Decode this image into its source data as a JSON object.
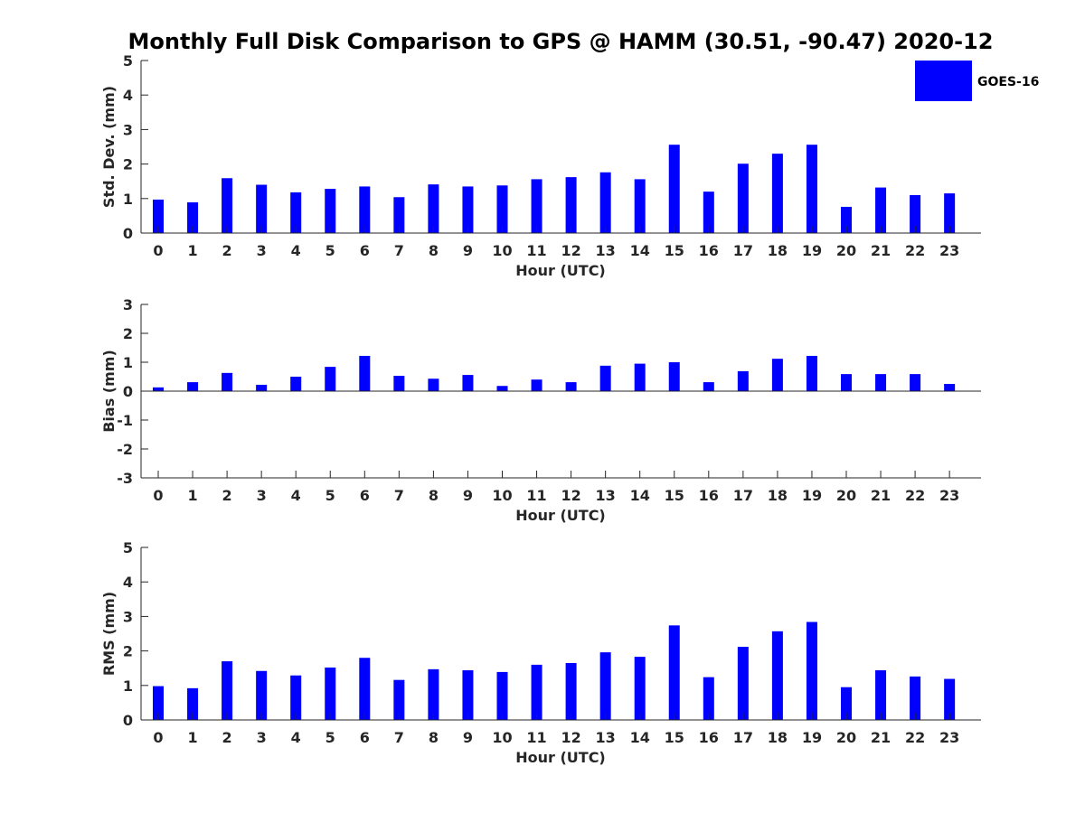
{
  "chart_data": [
    {
      "type": "bar",
      "title": "Monthly Full Disk Comparison to GPS @ HAMM (30.51, -90.47) 2020-12",
      "xlabel": "Hour (UTC)",
      "ylabel": "Std. Dev. (mm)",
      "categories": [
        "0",
        "1",
        "2",
        "3",
        "4",
        "5",
        "6",
        "7",
        "8",
        "9",
        "10",
        "11",
        "12",
        "13",
        "14",
        "15",
        "16",
        "17",
        "18",
        "19",
        "20",
        "21",
        "22",
        "23"
      ],
      "series": [
        {
          "name": "GOES-16",
          "color": "#0000ff",
          "values": [
            0.97,
            0.89,
            1.59,
            1.4,
            1.18,
            1.28,
            1.35,
            1.04,
            1.41,
            1.35,
            1.38,
            1.56,
            1.62,
            1.76,
            1.56,
            2.56,
            1.2,
            2.01,
            2.3,
            2.56,
            0.76,
            1.32,
            1.1,
            1.15
          ]
        }
      ],
      "ylim": [
        0,
        5
      ],
      "yticks": [
        "0",
        "1",
        "2",
        "3",
        "4",
        "5"
      ],
      "legend": {
        "position": "top-right",
        "entries": [
          "GOES-16"
        ]
      },
      "grid": false
    },
    {
      "type": "bar",
      "xlabel": "Hour (UTC)",
      "ylabel": "Bias (mm)",
      "categories": [
        "0",
        "1",
        "2",
        "3",
        "4",
        "5",
        "6",
        "7",
        "8",
        "9",
        "10",
        "11",
        "12",
        "13",
        "14",
        "15",
        "16",
        "17",
        "18",
        "19",
        "20",
        "21",
        "22",
        "23"
      ],
      "series": [
        {
          "name": "GOES-16",
          "color": "#0000ff",
          "values": [
            0.13,
            0.31,
            0.63,
            0.22,
            0.5,
            0.84,
            1.22,
            0.53,
            0.43,
            0.56,
            0.18,
            0.4,
            0.31,
            0.88,
            0.95,
            1.0,
            0.31,
            0.69,
            1.12,
            1.22,
            0.59,
            0.59,
            0.59,
            0.25
          ]
        }
      ],
      "ylim": [
        -3,
        3
      ],
      "yticks": [
        "-3",
        "-2",
        "-1",
        "0",
        "1",
        "2",
        "3"
      ],
      "grid": false
    },
    {
      "type": "bar",
      "xlabel": "Hour (UTC)",
      "ylabel": "RMS (mm)",
      "categories": [
        "0",
        "1",
        "2",
        "3",
        "4",
        "5",
        "6",
        "7",
        "8",
        "9",
        "10",
        "11",
        "12",
        "13",
        "14",
        "15",
        "16",
        "17",
        "18",
        "19",
        "20",
        "21",
        "22",
        "23"
      ],
      "series": [
        {
          "name": "GOES-16",
          "color": "#0000ff",
          "values": [
            0.98,
            0.92,
            1.7,
            1.42,
            1.29,
            1.52,
            1.8,
            1.16,
            1.47,
            1.44,
            1.39,
            1.6,
            1.65,
            1.96,
            1.83,
            2.74,
            1.24,
            2.12,
            2.57,
            2.84,
            0.95,
            1.44,
            1.26,
            1.19
          ]
        }
      ],
      "ylim": [
        0,
        5
      ],
      "yticks": [
        "0",
        "1",
        "2",
        "3",
        "4",
        "5"
      ],
      "grid": false
    }
  ]
}
